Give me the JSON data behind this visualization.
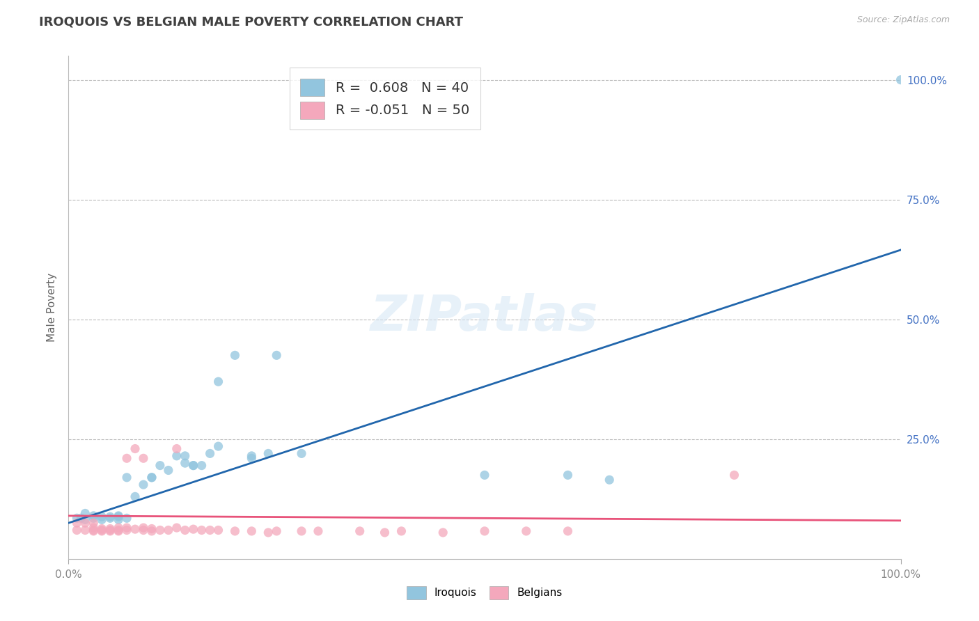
{
  "title": "IROQUOIS VS BELGIAN MALE POVERTY CORRELATION CHART",
  "source": "Source: ZipAtlas.com",
  "ylabel": "Male Poverty",
  "legend_iroquois_label": "R =  0.608   N = 40",
  "legend_belgian_label": "R = -0.051   N = 50",
  "iroquois_color": "#92c5de",
  "belgian_color": "#f4a8bc",
  "iroquois_line_color": "#2166ac",
  "belgian_line_color": "#e8537a",
  "watermark_text": "ZIPatlas",
  "iroquois_points": [
    [
      0.01,
      0.085
    ],
    [
      0.015,
      0.085
    ],
    [
      0.02,
      0.082
    ],
    [
      0.02,
      0.095
    ],
    [
      0.03,
      0.085
    ],
    [
      0.03,
      0.09
    ],
    [
      0.04,
      0.082
    ],
    [
      0.04,
      0.088
    ],
    [
      0.05,
      0.085
    ],
    [
      0.05,
      0.088
    ],
    [
      0.06,
      0.082
    ],
    [
      0.06,
      0.09
    ],
    [
      0.06,
      0.088
    ],
    [
      0.07,
      0.085
    ],
    [
      0.07,
      0.17
    ],
    [
      0.08,
      0.13
    ],
    [
      0.09,
      0.155
    ],
    [
      0.1,
      0.17
    ],
    [
      0.1,
      0.17
    ],
    [
      0.11,
      0.195
    ],
    [
      0.12,
      0.185
    ],
    [
      0.13,
      0.215
    ],
    [
      0.14,
      0.215
    ],
    [
      0.14,
      0.2
    ],
    [
      0.15,
      0.195
    ],
    [
      0.15,
      0.195
    ],
    [
      0.16,
      0.195
    ],
    [
      0.17,
      0.22
    ],
    [
      0.18,
      0.235
    ],
    [
      0.18,
      0.37
    ],
    [
      0.2,
      0.425
    ],
    [
      0.22,
      0.21
    ],
    [
      0.22,
      0.215
    ],
    [
      0.24,
      0.22
    ],
    [
      0.25,
      0.425
    ],
    [
      0.28,
      0.22
    ],
    [
      0.5,
      0.175
    ],
    [
      0.6,
      0.175
    ],
    [
      0.65,
      0.165
    ],
    [
      1.0,
      1.0
    ]
  ],
  "belgian_points": [
    [
      0.01,
      0.06
    ],
    [
      0.01,
      0.075
    ],
    [
      0.02,
      0.06
    ],
    [
      0.02,
      0.075
    ],
    [
      0.03,
      0.058
    ],
    [
      0.03,
      0.075
    ],
    [
      0.03,
      0.06
    ],
    [
      0.03,
      0.065
    ],
    [
      0.04,
      0.058
    ],
    [
      0.04,
      0.06
    ],
    [
      0.04,
      0.063
    ],
    [
      0.05,
      0.058
    ],
    [
      0.05,
      0.06
    ],
    [
      0.05,
      0.063
    ],
    [
      0.06,
      0.058
    ],
    [
      0.06,
      0.06
    ],
    [
      0.06,
      0.065
    ],
    [
      0.07,
      0.06
    ],
    [
      0.07,
      0.065
    ],
    [
      0.07,
      0.21
    ],
    [
      0.08,
      0.062
    ],
    [
      0.08,
      0.23
    ],
    [
      0.09,
      0.06
    ],
    [
      0.09,
      0.065
    ],
    [
      0.09,
      0.21
    ],
    [
      0.1,
      0.058
    ],
    [
      0.1,
      0.063
    ],
    [
      0.11,
      0.06
    ],
    [
      0.12,
      0.06
    ],
    [
      0.13,
      0.23
    ],
    [
      0.13,
      0.065
    ],
    [
      0.14,
      0.06
    ],
    [
      0.15,
      0.062
    ],
    [
      0.16,
      0.06
    ],
    [
      0.17,
      0.06
    ],
    [
      0.18,
      0.06
    ],
    [
      0.2,
      0.058
    ],
    [
      0.22,
      0.058
    ],
    [
      0.24,
      0.055
    ],
    [
      0.25,
      0.058
    ],
    [
      0.28,
      0.058
    ],
    [
      0.3,
      0.058
    ],
    [
      0.35,
      0.058
    ],
    [
      0.38,
      0.055
    ],
    [
      0.4,
      0.058
    ],
    [
      0.45,
      0.055
    ],
    [
      0.5,
      0.058
    ],
    [
      0.55,
      0.058
    ],
    [
      0.6,
      0.058
    ],
    [
      0.8,
      0.175
    ]
  ],
  "iroquois_trend_x": [
    0.0,
    1.0
  ],
  "iroquois_trend_y": [
    0.075,
    0.645
  ],
  "belgian_trend_x": [
    0.0,
    1.0
  ],
  "belgian_trend_y": [
    0.09,
    0.08
  ],
  "xlim": [
    0.0,
    1.0
  ],
  "ylim": [
    0.0,
    1.05
  ],
  "yticks": [
    0.0,
    0.25,
    0.5,
    0.75,
    1.0
  ],
  "ytick_labels_right": [
    "",
    "25.0%",
    "50.0%",
    "75.0%",
    "100.0%"
  ],
  "xtick_labels": [
    "0.0%",
    "100.0%"
  ],
  "background_color": "#ffffff",
  "grid_color": "#bbbbbb",
  "title_color": "#404040",
  "right_tick_color": "#4472c4",
  "bottom_tick_color": "#888888"
}
